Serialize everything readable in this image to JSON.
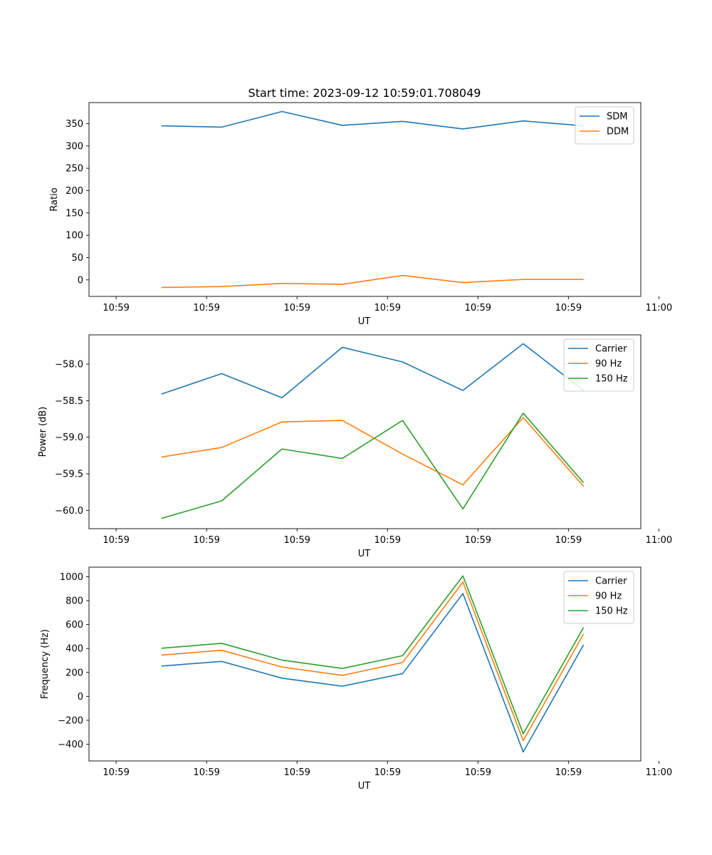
{
  "figure": {
    "title": "Start time: 2023-09-12 10:59:01.708049"
  },
  "chart_data": [
    {
      "type": "line",
      "title": "Start time: 2023-09-12 10:59:01.708049",
      "xlabel": "UT",
      "ylabel": "Ratio",
      "xlim": [
        -0.45,
        8.7
      ],
      "ylim": [
        -37,
        397
      ],
      "x": [
        0.75,
        1.75,
        2.75,
        3.75,
        4.75,
        5.75,
        6.75,
        7.75
      ],
      "xticks": [
        0,
        1.5,
        3,
        4.5,
        6,
        7.5,
        9
      ],
      "xtick_labels": [
        "10:59",
        "10:59",
        "10:59",
        "10:59",
        "10:59",
        "10:59",
        "11:00"
      ],
      "yticks": [
        0,
        50,
        100,
        150,
        200,
        250,
        300,
        350
      ],
      "ytick_labels": [
        "0",
        "50",
        "100",
        "150",
        "200",
        "250",
        "300",
        "350"
      ],
      "legend": "top-right",
      "series": [
        {
          "name": "SDM",
          "color": "#1f77b4",
          "values": [
            345,
            342,
            377,
            346,
            355,
            338,
            356,
            345
          ]
        },
        {
          "name": "DDM",
          "color": "#ff7f0e",
          "values": [
            -17,
            -15,
            -8,
            -10,
            10,
            -6,
            1,
            1
          ]
        }
      ]
    },
    {
      "type": "line",
      "title": "",
      "xlabel": "UT",
      "ylabel": "Power (dB)",
      "xlim": [
        -0.45,
        8.7
      ],
      "ylim": [
        -60.25,
        -57.6
      ],
      "x": [
        0.75,
        1.75,
        2.75,
        3.75,
        4.75,
        5.75,
        6.75,
        7.75
      ],
      "xticks": [
        0,
        1.5,
        3,
        4.5,
        6,
        7.5,
        9
      ],
      "xtick_labels": [
        "10:59",
        "10:59",
        "10:59",
        "10:59",
        "10:59",
        "10:59",
        "11:00"
      ],
      "yticks": [
        -60.0,
        -59.5,
        -59.0,
        -58.5,
        -58.0
      ],
      "ytick_labels": [
        "−60.0",
        "−59.5",
        "−59.0",
        "−58.5",
        "−58.0"
      ],
      "legend": "top-right",
      "series": [
        {
          "name": "Carrier",
          "color": "#1f77b4",
          "values": [
            -58.41,
            -58.13,
            -58.46,
            -57.77,
            -57.97,
            -58.36,
            -57.72,
            -58.36
          ]
        },
        {
          "name": "90 Hz",
          "color": "#ff7f0e",
          "values": [
            -59.27,
            -59.14,
            -58.79,
            -58.77,
            -59.23,
            -59.65,
            -58.73,
            -59.67
          ]
        },
        {
          "name": "150 Hz",
          "color": "#2ca02c",
          "values": [
            -60.11,
            -59.87,
            -59.16,
            -59.29,
            -58.77,
            -59.98,
            -58.67,
            -59.62
          ]
        }
      ]
    },
    {
      "type": "line",
      "title": "",
      "xlabel": "UT",
      "ylabel": "Frequency (Hz)",
      "xlim": [
        -0.45,
        8.7
      ],
      "ylim": [
        -540,
        1080
      ],
      "x": [
        0.75,
        1.75,
        2.75,
        3.75,
        4.75,
        5.75,
        6.75,
        7.75
      ],
      "xticks": [
        0,
        1.5,
        3,
        4.5,
        6,
        7.5,
        9
      ],
      "xtick_labels": [
        "10:59",
        "10:59",
        "10:59",
        "10:59",
        "10:59",
        "10:59",
        "11:00"
      ],
      "yticks": [
        -400,
        -200,
        0,
        200,
        400,
        600,
        800,
        1000
      ],
      "ytick_labels": [
        "−400",
        "−200",
        "0",
        "200",
        "400",
        "600",
        "800",
        "1000"
      ],
      "legend": "top-right",
      "series": [
        {
          "name": "Carrier",
          "color": "#1f77b4",
          "values": [
            253,
            292,
            152,
            85,
            190,
            860,
            -465,
            430
          ]
        },
        {
          "name": "90 Hz",
          "color": "#ff7f0e",
          "values": [
            345,
            385,
            245,
            175,
            283,
            955,
            -370,
            520
          ]
        },
        {
          "name": "150 Hz",
          "color": "#2ca02c",
          "values": [
            402,
            443,
            303,
            233,
            340,
            1007,
            -313,
            575
          ]
        }
      ]
    }
  ]
}
